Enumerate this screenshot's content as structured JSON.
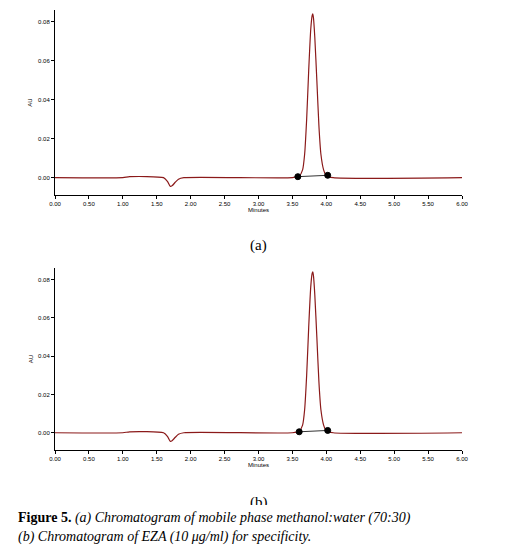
{
  "chart_data": [
    {
      "type": "line",
      "panel_label": "(a)",
      "x_label": "Minutes",
      "y_label": "AU",
      "xlim": [
        0,
        6
      ],
      "ylim": [
        -0.009,
        0.086
      ],
      "xticks": [
        {
          "value": 0,
          "label": "0.00"
        },
        {
          "value": 0.5,
          "label": "0.50"
        },
        {
          "value": 1,
          "label": "1.00"
        },
        {
          "value": 1.5,
          "label": "1.50"
        },
        {
          "value": 2,
          "label": "2.00"
        },
        {
          "value": 2.5,
          "label": "2.50"
        },
        {
          "value": 3,
          "label": "3.00"
        },
        {
          "value": 3.5,
          "label": "3.50"
        },
        {
          "value": 4,
          "label": "4.00"
        },
        {
          "value": 4.5,
          "label": "4.50"
        },
        {
          "value": 5,
          "label": "5.00"
        },
        {
          "value": 5.5,
          "label": "5.50"
        },
        {
          "value": 6,
          "label": "6.00"
        }
      ],
      "yticks": [
        {
          "value": 0,
          "label": "0.00"
        },
        {
          "value": 0.02,
          "label": "0.02"
        },
        {
          "value": 0.04,
          "label": "0.04"
        },
        {
          "value": 0.06,
          "label": "0.06"
        },
        {
          "value": 0.08,
          "label": "0.08"
        }
      ],
      "grid": false,
      "series": [
        {
          "type": "line",
          "color": "#8b1a1a",
          "line_style": "solid",
          "x": [
            0,
            1.0,
            1.1,
            1.6,
            1.66,
            1.7,
            1.73,
            1.77,
            1.82,
            1.9,
            3.5,
            3.6,
            3.65,
            3.68,
            3.71,
            3.74,
            3.77,
            3.79,
            3.8,
            3.81,
            3.83,
            3.86,
            3.89,
            3.92,
            3.96,
            4.0,
            4.1,
            6.0
          ],
          "values": [
            0,
            0,
            0.0005,
            0,
            -0.002,
            -0.0045,
            -0.004,
            -0.0025,
            -0.0008,
            0,
            0,
            0.0008,
            0.004,
            0.012,
            0.03,
            0.055,
            0.076,
            0.083,
            0.084,
            0.082,
            0.072,
            0.05,
            0.027,
            0.012,
            0.004,
            0.001,
            0,
            0
          ]
        },
        {
          "type": "scatter",
          "color": "#000000",
          "marker": "triangle-open",
          "x": [
            3.58,
            4.02
          ],
          "values": [
            0.0005,
            0.0012
          ]
        }
      ]
    },
    {
      "type": "line",
      "panel_label": "(b)",
      "x_label": "Minutes",
      "y_label": "AU",
      "xlim": [
        0,
        6
      ],
      "ylim": [
        -0.009,
        0.086
      ],
      "xticks": [
        {
          "value": 0,
          "label": "0.00"
        },
        {
          "value": 0.5,
          "label": "0.50"
        },
        {
          "value": 1,
          "label": "1.00"
        },
        {
          "value": 1.5,
          "label": "1.50"
        },
        {
          "value": 2,
          "label": "2.00"
        },
        {
          "value": 2.5,
          "label": "2.50"
        },
        {
          "value": 3,
          "label": "3.00"
        },
        {
          "value": 3.5,
          "label": "3.50"
        },
        {
          "value": 4,
          "label": "4.00"
        },
        {
          "value": 4.5,
          "label": "4.50"
        },
        {
          "value": 5,
          "label": "5.00"
        },
        {
          "value": 5.5,
          "label": "5.50"
        },
        {
          "value": 6,
          "label": "6.00"
        }
      ],
      "yticks": [
        {
          "value": 0,
          "label": "0.00"
        },
        {
          "value": 0.02,
          "label": "0.02"
        },
        {
          "value": 0.04,
          "label": "0.04"
        },
        {
          "value": 0.06,
          "label": "0.06"
        },
        {
          "value": 0.08,
          "label": "0.08"
        }
      ],
      "grid": false,
      "series": [
        {
          "type": "line",
          "color": "#8b1a1a",
          "line_style": "solid",
          "x": [
            0,
            1.0,
            1.1,
            1.6,
            1.66,
            1.7,
            1.73,
            1.77,
            1.82,
            1.9,
            3.5,
            3.6,
            3.65,
            3.68,
            3.71,
            3.74,
            3.77,
            3.79,
            3.8,
            3.81,
            3.83,
            3.86,
            3.89,
            3.92,
            3.96,
            4.0,
            4.1,
            6.0
          ],
          "values": [
            0,
            0,
            0.0005,
            0,
            -0.002,
            -0.0045,
            -0.004,
            -0.0025,
            -0.0008,
            0,
            0,
            0.0008,
            0.004,
            0.012,
            0.03,
            0.055,
            0.076,
            0.083,
            0.084,
            0.082,
            0.072,
            0.05,
            0.027,
            0.012,
            0.004,
            0.001,
            0,
            0
          ]
        },
        {
          "type": "scatter",
          "color": "#000000",
          "marker": "triangle-open",
          "x": [
            3.6,
            4.02
          ],
          "values": [
            0.0005,
            0.0012
          ]
        }
      ]
    }
  ],
  "caption": {
    "label": "Figure 5.",
    "lines": [
      "(a) Chromatogram of mobile phase methanol:water (70:30)",
      "(b) Chromatogram of EZA (10 μg/ml) for specificity."
    ]
  }
}
